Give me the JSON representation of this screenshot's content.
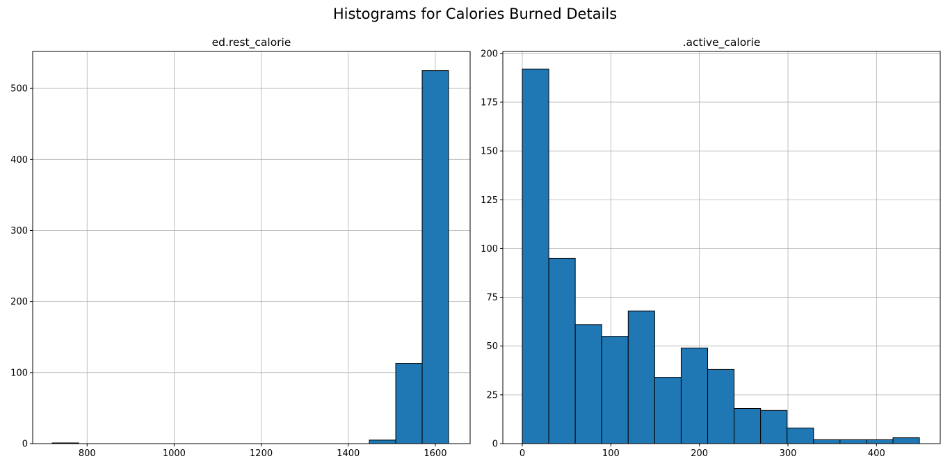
{
  "figure": {
    "title": "Histograms for Calories Burned Details"
  },
  "chart_data": [
    {
      "type": "bar",
      "title": "ed.rest_calorie",
      "xlabel": "",
      "ylabel": "",
      "xlim": [
        675,
        1680
      ],
      "ylim": [
        0,
        552
      ],
      "xticks": [
        800,
        1000,
        1200,
        1400,
        1600
      ],
      "yticks": [
        0,
        100,
        200,
        300,
        400,
        500
      ],
      "grid": true,
      "bin_width": 60.7,
      "bins": [
        {
          "x0": 720.0,
          "x1": 780.7,
          "value": 1
        },
        {
          "x0": 780.7,
          "x1": 841.4,
          "value": 0
        },
        {
          "x0": 841.4,
          "x1": 902.1,
          "value": 0
        },
        {
          "x0": 902.1,
          "x1": 962.8,
          "value": 0
        },
        {
          "x0": 962.8,
          "x1": 1023.5,
          "value": 0
        },
        {
          "x0": 1023.5,
          "x1": 1084.2,
          "value": 0
        },
        {
          "x0": 1084.2,
          "x1": 1144.9,
          "value": 0
        },
        {
          "x0": 1144.9,
          "x1": 1205.6,
          "value": 0
        },
        {
          "x0": 1205.6,
          "x1": 1266.3,
          "value": 0
        },
        {
          "x0": 1266.3,
          "x1": 1327.0,
          "value": 0
        },
        {
          "x0": 1327.0,
          "x1": 1387.7,
          "value": 0
        },
        {
          "x0": 1387.7,
          "x1": 1448.4,
          "value": 0
        },
        {
          "x0": 1448.4,
          "x1": 1509.1,
          "value": 5
        },
        {
          "x0": 1509.1,
          "x1": 1569.8,
          "value": 113
        },
        {
          "x0": 1569.8,
          "x1": 1630.5,
          "value": 525
        }
      ],
      "bar_color": "#1f77b4"
    },
    {
      "type": "bar",
      "title": ".active_calorie",
      "xlabel": "",
      "ylabel": "",
      "xlim": [
        -22,
        472
      ],
      "ylim": [
        0,
        201
      ],
      "xticks": [
        0,
        100,
        200,
        300,
        400
      ],
      "yticks": [
        0,
        25,
        50,
        75,
        100,
        125,
        150,
        175,
        200
      ],
      "grid": true,
      "bins": [
        {
          "x0": 0,
          "x1": 29.9,
          "value": 192
        },
        {
          "x0": 29.9,
          "x1": 59.8,
          "value": 95
        },
        {
          "x0": 59.8,
          "x1": 89.7,
          "value": 61
        },
        {
          "x0": 89.7,
          "x1": 119.6,
          "value": 55
        },
        {
          "x0": 119.6,
          "x1": 149.5,
          "value": 68
        },
        {
          "x0": 149.5,
          "x1": 179.4,
          "value": 34
        },
        {
          "x0": 179.4,
          "x1": 209.3,
          "value": 49
        },
        {
          "x0": 209.3,
          "x1": 239.2,
          "value": 38
        },
        {
          "x0": 239.2,
          "x1": 269.1,
          "value": 18
        },
        {
          "x0": 269.1,
          "x1": 299.0,
          "value": 17
        },
        {
          "x0": 299.0,
          "x1": 328.9,
          "value": 8
        },
        {
          "x0": 328.9,
          "x1": 358.8,
          "value": 2
        },
        {
          "x0": 358.8,
          "x1": 388.7,
          "value": 2
        },
        {
          "x0": 388.7,
          "x1": 418.6,
          "value": 2
        },
        {
          "x0": 418.6,
          "x1": 448.5,
          "value": 3
        }
      ],
      "bar_color": "#1f77b4"
    }
  ]
}
